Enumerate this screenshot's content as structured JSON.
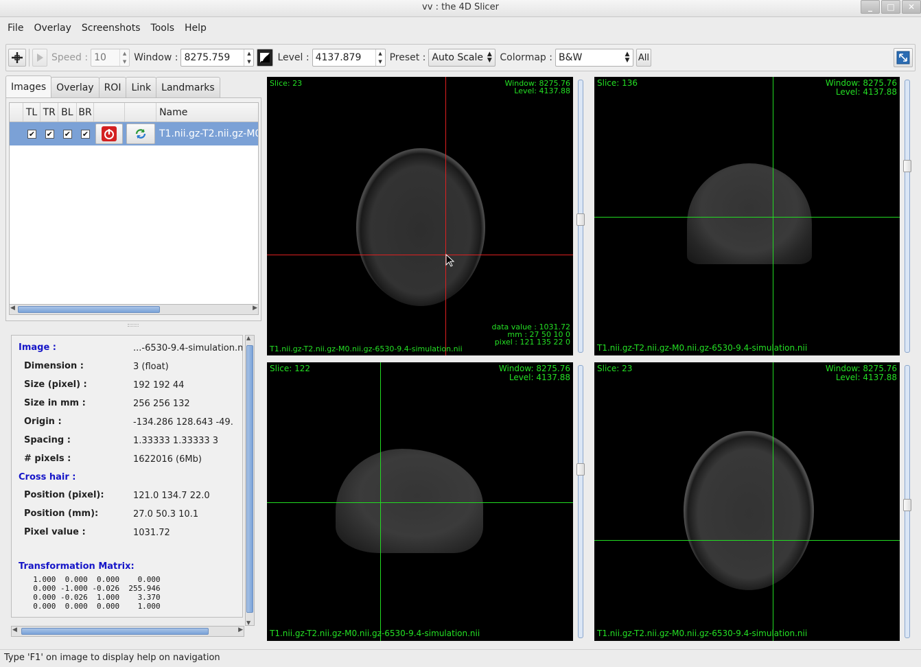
{
  "window": {
    "title": "vv : the 4D Slicer",
    "buttons": [
      "_",
      "□",
      "✕"
    ]
  },
  "menu": [
    "File",
    "Overlay",
    "Screenshots",
    "Tools",
    "Help"
  ],
  "toolbar": {
    "speed_label": "Speed :",
    "speed_value": "10",
    "window_label": "Window :",
    "window_value": "8275.759",
    "level_label": "Level :",
    "level_value": "4137.879",
    "preset_label": "Preset :",
    "preset_value": "Auto Scale",
    "colormap_label": "Colormap :",
    "colormap_value": "B&W",
    "all_label": "All"
  },
  "tabs": [
    "Images",
    "Overlay",
    "ROI",
    "Link",
    "Landmarks"
  ],
  "image_table": {
    "headers": [
      "TL",
      "TR",
      "BL",
      "BR",
      "",
      "",
      "Name"
    ],
    "rows": [
      {
        "name": "T1.nii.gz-T2.nii.gz-M0",
        "checks": [
          "✔",
          "✔",
          "✔",
          "✔"
        ]
      }
    ]
  },
  "info": {
    "image_label": "Image :",
    "image_value": "...-6530-9.4-simulation.n",
    "dimension_label": "Dimension :",
    "dimension_value": "3 (float)",
    "size_pixel_label": "Size (pixel) :",
    "size_pixel_value": "192 192 44",
    "size_mm_label": "Size in mm :",
    "size_mm_value": "256 256 132",
    "origin_label": "Origin :",
    "origin_value": "-134.286 128.643 -49.",
    "spacing_label": "Spacing :",
    "spacing_value": "1.33333 1.33333 3",
    "npixels_label": "# pixels :",
    "npixels_value": "1622016 (6Mb)",
    "crosshair_label": "Cross hair :",
    "pos_pixel_label": "Position (pixel):",
    "pos_pixel_value": "121.0 134.7 22.0",
    "pos_mm_label": "Position (mm):",
    "pos_mm_value": "27.0 50.3 10.1",
    "pixel_value_label": "Pixel value :",
    "pixel_value_value": "1031.72",
    "matrix_label": "Transformation Matrix:",
    "matrix_text": "  1.000  0.000  0.000    0.000\n  0.000 -1.000 -0.026  255.946\n  0.000 -0.026  1.000    3.370\n  0.000  0.000  0.000    1.000"
  },
  "views": {
    "tl": {
      "slice": "Slice: 23",
      "window": "Window: 8275.76",
      "level": "Level: 4137.88",
      "data_value": "data value : 1031.72",
      "mm": "mm : 27 50 10 0",
      "pixel": "pixel : 121 135 22 0",
      "filename": "T1.nii.gz-T2.nii.gz-M0.nii.gz-6530-9.4-simulation.nii"
    },
    "tr": {
      "slice": "Slice: 136",
      "window": "Window: 8275.76",
      "level": "Level: 4137.88",
      "filename": "T1.nii.gz-T2.nii.gz-M0.nii.gz-6530-9.4-simulation.nii"
    },
    "bl": {
      "slice": "Slice: 122",
      "window": "Window: 8275.76",
      "level": "Level: 4137.88",
      "filename": "T1.nii.gz-T2.nii.gz-M0.nii.gz-6530-9.4-simulation.nii"
    },
    "br": {
      "slice": "Slice: 23",
      "window": "Window: 8275.76",
      "level": "Level: 4137.88",
      "filename": "T1.nii.gz-T2.nii.gz-M0.nii.gz-6530-9.4-simulation.nii"
    }
  },
  "colors": {
    "overlay_text": "#24e024",
    "crosshair_red": "#e02020",
    "crosshair_green": "#22dd22",
    "selection": "#7ba1d6",
    "section_blue": "#1515c8"
  },
  "statusbar": "Type 'F1' on image to display help on navigation"
}
